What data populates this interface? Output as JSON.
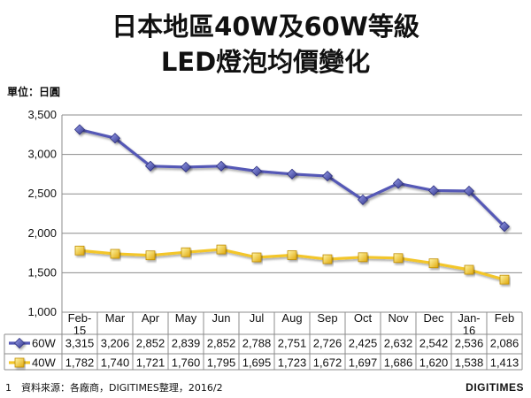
{
  "title": {
    "line1": "日本地區40W及60W等級",
    "line2": "LED燈泡均價變化"
  },
  "unit_label": "單位：日圓",
  "footer": {
    "page_number": "1",
    "source": "資料來源：各廠商，DIGITIMES整理，2016/2",
    "brand": "DIGITIMES"
  },
  "chart_data": {
    "type": "line",
    "categories": [
      [
        "Feb-",
        "15"
      ],
      [
        "Mar"
      ],
      [
        "Apr"
      ],
      [
        "May"
      ],
      [
        "Jun"
      ],
      [
        "Jul"
      ],
      [
        "Aug"
      ],
      [
        "Sep"
      ],
      [
        "Oct"
      ],
      [
        "Nov"
      ],
      [
        "Dec"
      ],
      [
        "Jan-",
        "16"
      ],
      [
        "Feb"
      ]
    ],
    "ylim": [
      1000,
      3500
    ],
    "yticks": [
      1000,
      1500,
      2000,
      2500,
      3000,
      3500
    ],
    "ytick_labels": [
      "1,000",
      "1,500",
      "2,000",
      "2,500",
      "3,000",
      "3,500"
    ],
    "grid": true,
    "legend": "data-table-bottom",
    "series": [
      {
        "name": "60W",
        "color": "#5458b6",
        "marker": "diamond",
        "values": [
          3315,
          3206,
          2852,
          2839,
          2852,
          2788,
          2751,
          2726,
          2425,
          2632,
          2542,
          2536,
          2086
        ],
        "labels": [
          "3,315",
          "3,206",
          "2,852",
          "2,839",
          "2,852",
          "2,788",
          "2,751",
          "2,726",
          "2,425",
          "2,632",
          "2,542",
          "2,536",
          "2,086"
        ]
      },
      {
        "name": "40W",
        "color": "#f3c62a",
        "marker": "square",
        "values": [
          1782,
          1740,
          1721,
          1760,
          1795,
          1695,
          1723,
          1672,
          1697,
          1686,
          1620,
          1538,
          1413
        ],
        "labels": [
          "1,782",
          "1,740",
          "1,721",
          "1,760",
          "1,795",
          "1,695",
          "1,723",
          "1,672",
          "1,697",
          "1,686",
          "1,620",
          "1,538",
          "1,413"
        ]
      }
    ]
  }
}
